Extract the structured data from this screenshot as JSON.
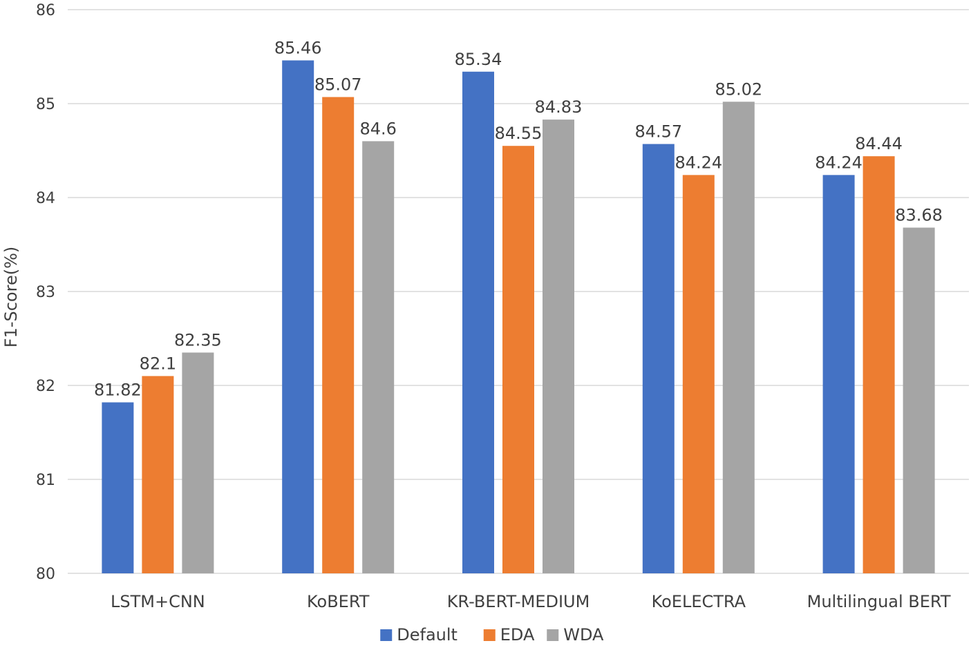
{
  "chart_data": {
    "type": "bar",
    "categories": [
      "LSTM+CNN",
      "KoBERT",
      "KR-BERT-MEDIUM",
      "KoELECTRA",
      "Multilingual BERT"
    ],
    "series": [
      {
        "name": "Default",
        "color": "#4472c4",
        "values": [
          81.82,
          85.46,
          85.34,
          84.57,
          84.24
        ]
      },
      {
        "name": "EDA",
        "color": "#ed7d31",
        "values": [
          82.1,
          85.07,
          84.55,
          84.24,
          84.44
        ]
      },
      {
        "name": "WDA",
        "color": "#a5a5a5",
        "values": [
          82.35,
          84.6,
          84.83,
          85.02,
          83.68
        ]
      }
    ],
    "title": "",
    "xlabel": "",
    "ylabel": "F1-Score(%)",
    "ylim": [
      80,
      86
    ],
    "yticks": [
      80,
      81,
      82,
      83,
      84,
      85,
      86
    ],
    "grid": true,
    "legend": "bottom"
  }
}
